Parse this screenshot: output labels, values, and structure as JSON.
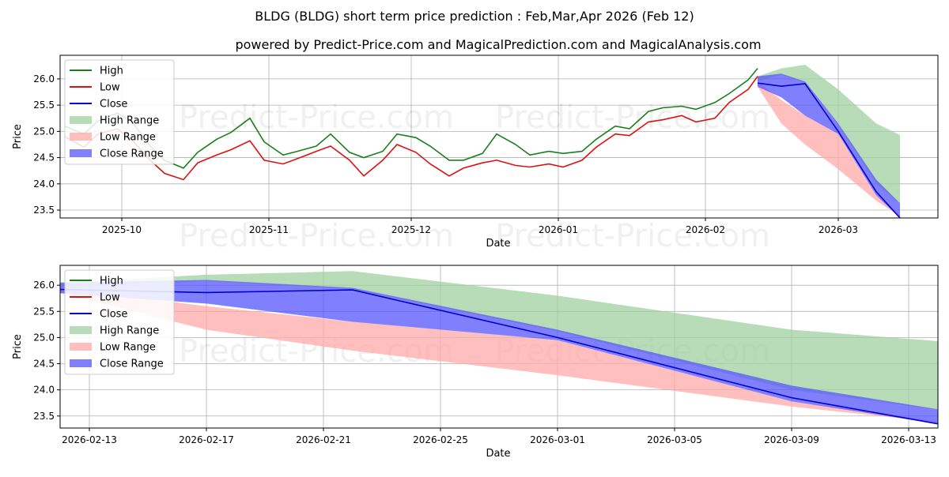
{
  "title": "BLDG (BLDG) short term price prediction : Feb,Mar,Apr 2026 (Feb 12)",
  "subtitle": "powered by Predict-Price.com and MagicalPrediction.com and MagicalAnalysis.com",
  "watermark": "Predict-Price.com",
  "colors": {
    "high": "#1a7f1a",
    "low": "#dd1111",
    "close": "#0000cc",
    "high_range": "#9fd09f",
    "low_range": "#ffaaaa",
    "close_range": "#5555ff",
    "grid": "#b0b0b0"
  },
  "chart_data": [
    {
      "type": "line",
      "xlabel": "Date",
      "ylabel": "Price",
      "ylim": [
        23.35,
        26.45
      ],
      "xlim": [
        "2025-09-18",
        "2026-03-22"
      ],
      "yticks": [
        23.5,
        24.0,
        24.5,
        25.0,
        25.5,
        26.0
      ],
      "ytick_labels": [
        "23.5",
        "24.0",
        "24.5",
        "25.0",
        "25.5",
        "26.0"
      ],
      "xticks": [
        "2025-10-01",
        "2025-11-01",
        "2025-12-01",
        "2026-01-01",
        "2026-02-01",
        "2026-03-01"
      ],
      "xtick_labels": [
        "2025-10",
        "2025-11",
        "2025-12",
        "2026-01",
        "2026-02",
        "2026-03"
      ],
      "legend": [
        "High",
        "Low",
        "Close",
        "High Range",
        "Low Range",
        "Close Range"
      ],
      "legend_position": "top-left",
      "grid": true,
      "history_dates": [
        "2025-09-19",
        "2025-09-23",
        "2025-09-26",
        "2025-09-30",
        "2025-10-03",
        "2025-10-07",
        "2025-10-10",
        "2025-10-14",
        "2025-10-17",
        "2025-10-21",
        "2025-10-24",
        "2025-10-28",
        "2025-10-31",
        "2025-11-04",
        "2025-11-07",
        "2025-11-11",
        "2025-11-14",
        "2025-11-18",
        "2025-11-21",
        "2025-11-25",
        "2025-11-28",
        "2025-12-02",
        "2025-12-05",
        "2025-12-09",
        "2025-12-12",
        "2025-12-16",
        "2025-12-19",
        "2025-12-23",
        "2025-12-26",
        "2025-12-30",
        "2026-01-02",
        "2026-01-06",
        "2026-01-09",
        "2026-01-13",
        "2026-01-16",
        "2026-01-20",
        "2026-01-23",
        "2026-01-27",
        "2026-01-30",
        "2026-02-03",
        "2026-02-06",
        "2026-02-10",
        "2026-02-12"
      ],
      "history_high": [
        25.1,
        24.95,
        25.2,
        25.35,
        25.2,
        24.72,
        24.45,
        24.3,
        24.6,
        24.85,
        24.98,
        25.25,
        24.8,
        24.55,
        24.62,
        24.72,
        24.95,
        24.6,
        24.5,
        24.62,
        24.95,
        24.88,
        24.72,
        24.45,
        24.45,
        24.58,
        24.95,
        24.75,
        24.55,
        24.62,
        24.58,
        24.62,
        24.85,
        25.1,
        25.05,
        25.38,
        25.45,
        25.48,
        25.42,
        25.55,
        25.72,
        25.98,
        26.2
      ],
      "history_low": [
        24.9,
        24.7,
        24.95,
        25.05,
        24.85,
        24.45,
        24.2,
        24.08,
        24.4,
        24.55,
        24.65,
        24.82,
        24.45,
        24.38,
        24.48,
        24.62,
        24.72,
        24.45,
        24.15,
        24.45,
        24.75,
        24.6,
        24.38,
        24.15,
        24.3,
        24.4,
        24.45,
        24.35,
        24.32,
        24.38,
        24.32,
        24.45,
        24.7,
        24.95,
        24.92,
        25.18,
        25.22,
        25.3,
        25.18,
        25.25,
        25.55,
        25.8,
        26.05
      ],
      "forecast_dates": [
        "2026-02-12",
        "2026-02-17",
        "2026-02-22",
        "2026-03-01",
        "2026-03-09",
        "2026-03-14"
      ],
      "close_line": [
        25.92,
        25.86,
        25.91,
        25.0,
        23.85,
        23.35
      ],
      "high_range": {
        "upper": [
          26.05,
          26.2,
          26.27,
          25.8,
          25.15,
          24.93
        ],
        "lower": [
          25.95,
          26.08,
          25.93,
          25.12,
          24.0,
          23.62
        ]
      },
      "low_range": {
        "upper": [
          25.95,
          25.6,
          25.3,
          24.95,
          23.78,
          23.4
        ],
        "lower": [
          25.85,
          25.15,
          24.75,
          24.28,
          23.68,
          23.38
        ]
      },
      "close_range": {
        "upper": [
          26.05,
          26.1,
          25.95,
          25.15,
          24.08,
          23.63
        ],
        "lower": [
          25.85,
          25.65,
          25.3,
          24.95,
          23.78,
          23.35
        ]
      }
    },
    {
      "type": "line",
      "xlabel": "Date",
      "ylabel": "Price",
      "ylim": [
        23.27,
        26.38
      ],
      "xlim": [
        "2026-02-12",
        "2026-03-14"
      ],
      "yticks": [
        23.5,
        24.0,
        24.5,
        25.0,
        25.5,
        26.0
      ],
      "ytick_labels": [
        "23.5",
        "24.0",
        "24.5",
        "25.0",
        "25.5",
        "26.0"
      ],
      "xticks": [
        "2026-02-13",
        "2026-02-17",
        "2026-02-21",
        "2026-02-25",
        "2026-03-01",
        "2026-03-05",
        "2026-03-09",
        "2026-03-13"
      ],
      "xtick_labels": [
        "2026-02-13",
        "2026-02-17",
        "2026-02-21",
        "2026-02-25",
        "2026-03-01",
        "2026-03-05",
        "2026-03-09",
        "2026-03-13"
      ],
      "legend": [
        "High",
        "Low",
        "Close",
        "High Range",
        "Low Range",
        "Close Range"
      ],
      "legend_position": "top-left",
      "grid": true
    }
  ]
}
